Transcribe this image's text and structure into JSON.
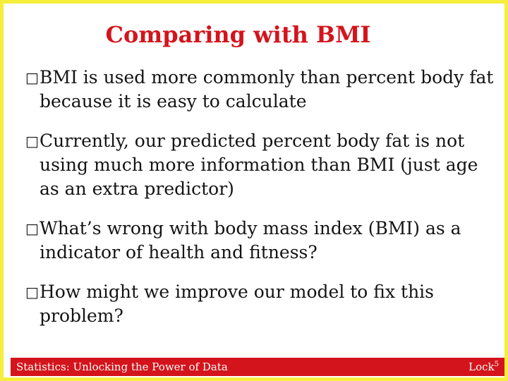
{
  "slide": {
    "title": "Comparing with BMI",
    "bullet_marker": "□",
    "bullets": [
      "BMI is used more commonly than percent body fat because it is easy to calculate",
      "Currently, our predicted percent body fat is not using much more information than BMI (just age as an extra predictor)",
      "What’s wrong with body mass index (BMI) as a indicator of health and fitness?",
      "How might we improve our model to fix this problem?"
    ]
  },
  "footer": {
    "left_text": "Statistics: Unlocking the Power of Data",
    "right_text": "Lock",
    "right_superscript": "5"
  },
  "colors": {
    "border": "#f5ee3c",
    "title": "#d4141c",
    "footer_background": "#d4141c",
    "footer_text": "#ffffff"
  }
}
